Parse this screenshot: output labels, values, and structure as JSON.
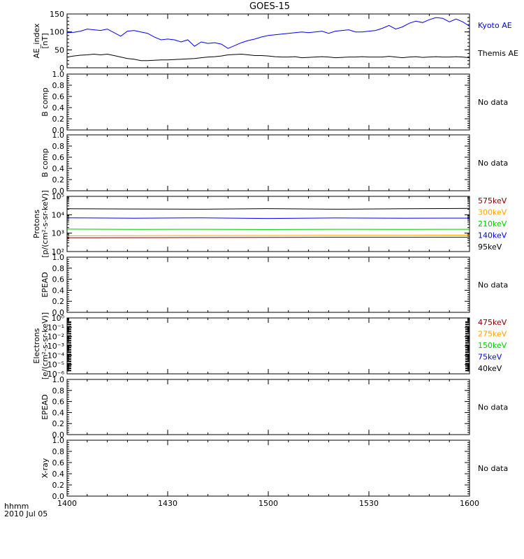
{
  "title": "GOES-15",
  "footer": {
    "axis_name": "hhmm",
    "date": "2010 Jul 05"
  },
  "colors": {
    "black": "#000000",
    "blue": "#0000ff",
    "green": "#00cc00",
    "orange": "#ffa500",
    "darkred": "#7f0000",
    "red": "#ff0000"
  },
  "chart_data": [
    {
      "type": "line",
      "panel": "ae",
      "ylabel": [
        "AE_index",
        "[nT]"
      ],
      "ylim": [
        0,
        150
      ],
      "yticks": [
        0,
        50,
        100,
        150
      ],
      "ytick_labels": [
        "0",
        "50",
        "100",
        "150"
      ],
      "x_ticks": [
        0,
        30,
        60,
        90,
        120
      ],
      "x_tick_labels": [
        "1400",
        "1430",
        "1500",
        "1530",
        "1600"
      ],
      "xlim": [
        0,
        120
      ],
      "series": [
        {
          "name": "Kyoto AE",
          "color": "#0000ff",
          "x": [
            0,
            2,
            4,
            6,
            8,
            10,
            12,
            14,
            16,
            18,
            20,
            22,
            24,
            26,
            28,
            30,
            32,
            34,
            36,
            38,
            40,
            42,
            44,
            46,
            48,
            50,
            52,
            54,
            56,
            58,
            60,
            62,
            64,
            66,
            68,
            70,
            72,
            74,
            76,
            78,
            80,
            82,
            84,
            86,
            88,
            90,
            92,
            94,
            96,
            98,
            100,
            102,
            104,
            106,
            108,
            110,
            112,
            114,
            116,
            118,
            120
          ],
          "y": [
            98,
            99,
            102,
            108,
            106,
            104,
            108,
            98,
            88,
            102,
            104,
            100,
            96,
            86,
            78,
            80,
            78,
            72,
            78,
            60,
            72,
            68,
            70,
            66,
            54,
            62,
            70,
            76,
            80,
            86,
            90,
            92,
            94,
            96,
            98,
            100,
            98,
            100,
            102,
            96,
            102,
            104,
            106,
            100,
            100,
            102,
            104,
            110,
            118,
            108,
            114,
            124,
            130,
            126,
            134,
            140,
            138,
            128,
            136,
            128,
            116
          ]
        },
        {
          "name": "Themis AE",
          "color": "#000000",
          "x": [
            0,
            2,
            4,
            6,
            8,
            10,
            12,
            14,
            16,
            18,
            20,
            22,
            24,
            26,
            28,
            30,
            32,
            34,
            36,
            38,
            40,
            42,
            44,
            46,
            48,
            50,
            52,
            54,
            56,
            58,
            60,
            62,
            64,
            66,
            68,
            70,
            72,
            74,
            76,
            78,
            80,
            82,
            84,
            86,
            88,
            90,
            92,
            94,
            96,
            98,
            100,
            102,
            104,
            106,
            108,
            110,
            112,
            114,
            116,
            118,
            120
          ],
          "y": [
            30,
            33,
            35,
            36,
            38,
            36,
            38,
            34,
            30,
            26,
            24,
            20,
            20,
            21,
            22,
            22,
            23,
            24,
            25,
            26,
            28,
            30,
            31,
            33,
            36,
            37,
            38,
            36,
            34,
            34,
            33,
            31,
            30,
            30,
            31,
            28,
            29,
            30,
            31,
            30,
            28,
            29,
            30,
            30,
            31,
            30,
            30,
            30,
            32,
            30,
            28,
            30,
            31,
            29,
            30,
            31,
            30,
            30,
            31,
            30,
            28
          ]
        }
      ],
      "right_labels": [
        {
          "text": "Kyoto AE",
          "color": "#0000ff"
        },
        {
          "text": "Themis AE",
          "color": "#000000"
        }
      ]
    },
    {
      "type": "line",
      "panel": "nodata",
      "ylabel": [
        "B comp"
      ],
      "ylim": [
        0,
        1
      ],
      "yticks": [
        0.0,
        0.2,
        0.4,
        0.6,
        0.8,
        1.0
      ],
      "ytick_labels": [
        "0.0",
        "0.2",
        "0.4",
        "0.6",
        "0.8",
        "1.0"
      ],
      "right_labels": [
        {
          "text": "No data",
          "color": "#000000"
        }
      ]
    },
    {
      "type": "line",
      "panel": "nodata",
      "ylabel": [
        "B comp"
      ],
      "ylim": [
        0,
        1
      ],
      "yticks": [
        0.0,
        0.2,
        0.4,
        0.6,
        0.8,
        1.0
      ],
      "ytick_labels": [
        "0.0",
        "0.2",
        "0.4",
        "0.6",
        "0.8",
        "1.0"
      ],
      "right_labels": [
        {
          "text": "No data",
          "color": "#000000"
        }
      ]
    },
    {
      "type": "line",
      "panel": "protons",
      "log": true,
      "ylabel": [
        "Protons",
        "[p/(cm²-s-sr-keV)]"
      ],
      "ylim": [
        100,
        100000
      ],
      "yticks": [
        100,
        1000,
        10000,
        100000
      ],
      "ytick_labels": [
        "10²",
        "10³",
        "10⁴",
        "10⁵"
      ],
      "series": [
        {
          "name": "95keV",
          "color": "#000000",
          "x": [
            0,
            20,
            40,
            60,
            80,
            100,
            120
          ],
          "y": [
            21000,
            20500,
            20000,
            21500,
            20000,
            21000,
            22000
          ]
        },
        {
          "name": "140keV",
          "color": "#0000ff",
          "x": [
            0,
            20,
            40,
            60,
            80,
            100,
            120
          ],
          "y": [
            6800,
            6500,
            6800,
            6300,
            6700,
            6500,
            6600
          ]
        },
        {
          "name": "210keV",
          "color": "#00cc00",
          "x": [
            0,
            20,
            40,
            60,
            80,
            100,
            120
          ],
          "y": [
            1650,
            1600,
            1620,
            1580,
            1620,
            1600,
            1620
          ]
        },
        {
          "name": "300keV",
          "color": "#ffa500",
          "x": [
            0,
            20,
            40,
            60,
            80,
            100,
            120
          ],
          "y": [
            720,
            730,
            740,
            750,
            760,
            770,
            780
          ]
        },
        {
          "name": "575keV",
          "color": "#7f0000",
          "x": [
            0,
            20,
            40,
            60,
            80,
            100,
            120
          ],
          "y": [
            560,
            570,
            580,
            590,
            600,
            600,
            600
          ]
        }
      ],
      "right_labels": [
        {
          "text": "575keV",
          "color": "#7f0000"
        },
        {
          "text": "300keV",
          "color": "#ffa500"
        },
        {
          "text": "210keV",
          "color": "#00cc00"
        },
        {
          "text": "140keV",
          "color": "#0000ff"
        },
        {
          "text": "95keV",
          "color": "#000000"
        }
      ]
    },
    {
      "type": "line",
      "panel": "nodata",
      "ylabel": [
        "EPEAD"
      ],
      "ylim": [
        0,
        1
      ],
      "yticks": [
        0.0,
        0.2,
        0.4,
        0.6,
        0.8,
        1.0
      ],
      "ytick_labels": [
        "0.0",
        "0.2",
        "0.4",
        "0.6",
        "0.8",
        "1.0"
      ],
      "right_labels": [
        {
          "text": "No data",
          "color": "#000000"
        }
      ]
    },
    {
      "type": "line",
      "panel": "electrons",
      "log": true,
      "ylabel": [
        "Electrons",
        "[e/(cm²-s-sr-keV)]"
      ],
      "ylim": [
        1e-06,
        1
      ],
      "yticks": [
        1e-06,
        1e-05,
        0.0001,
        0.001,
        0.01,
        0.1,
        1
      ],
      "ytick_labels": [
        "10⁻⁶",
        "10⁻⁵",
        "10⁻⁴",
        "10⁻³",
        "10⁻²",
        "10⁻¹",
        "10⁰"
      ],
      "series": [],
      "right_labels": [
        {
          "text": "475keV",
          "color": "#7f0000"
        },
        {
          "text": "275keV",
          "color": "#ffa500"
        },
        {
          "text": "150keV",
          "color": "#00cc00"
        },
        {
          "text": "75keV",
          "color": "#0000ff"
        },
        {
          "text": "40keV",
          "color": "#000000"
        }
      ]
    },
    {
      "type": "line",
      "panel": "nodata",
      "ylabel": [
        "EPEAD"
      ],
      "ylim": [
        0,
        1
      ],
      "yticks": [
        0.0,
        0.2,
        0.4,
        0.6,
        0.8,
        1.0
      ],
      "ytick_labels": [
        "0.0",
        "0.2",
        "0.4",
        "0.6",
        "0.8",
        "1.0"
      ],
      "right_labels": [
        {
          "text": "No data",
          "color": "#000000"
        }
      ]
    },
    {
      "type": "line",
      "panel": "nodata",
      "ylabel": [
        "X-ray"
      ],
      "ylim": [
        0,
        1
      ],
      "yticks": [
        0.0,
        0.2,
        0.4,
        0.6,
        0.8,
        1.0
      ],
      "ytick_labels": [
        "0.0",
        "0.2",
        "0.4",
        "0.6",
        "0.8",
        "1.0"
      ],
      "right_labels": [
        {
          "text": "No data",
          "color": "#000000"
        }
      ]
    }
  ]
}
